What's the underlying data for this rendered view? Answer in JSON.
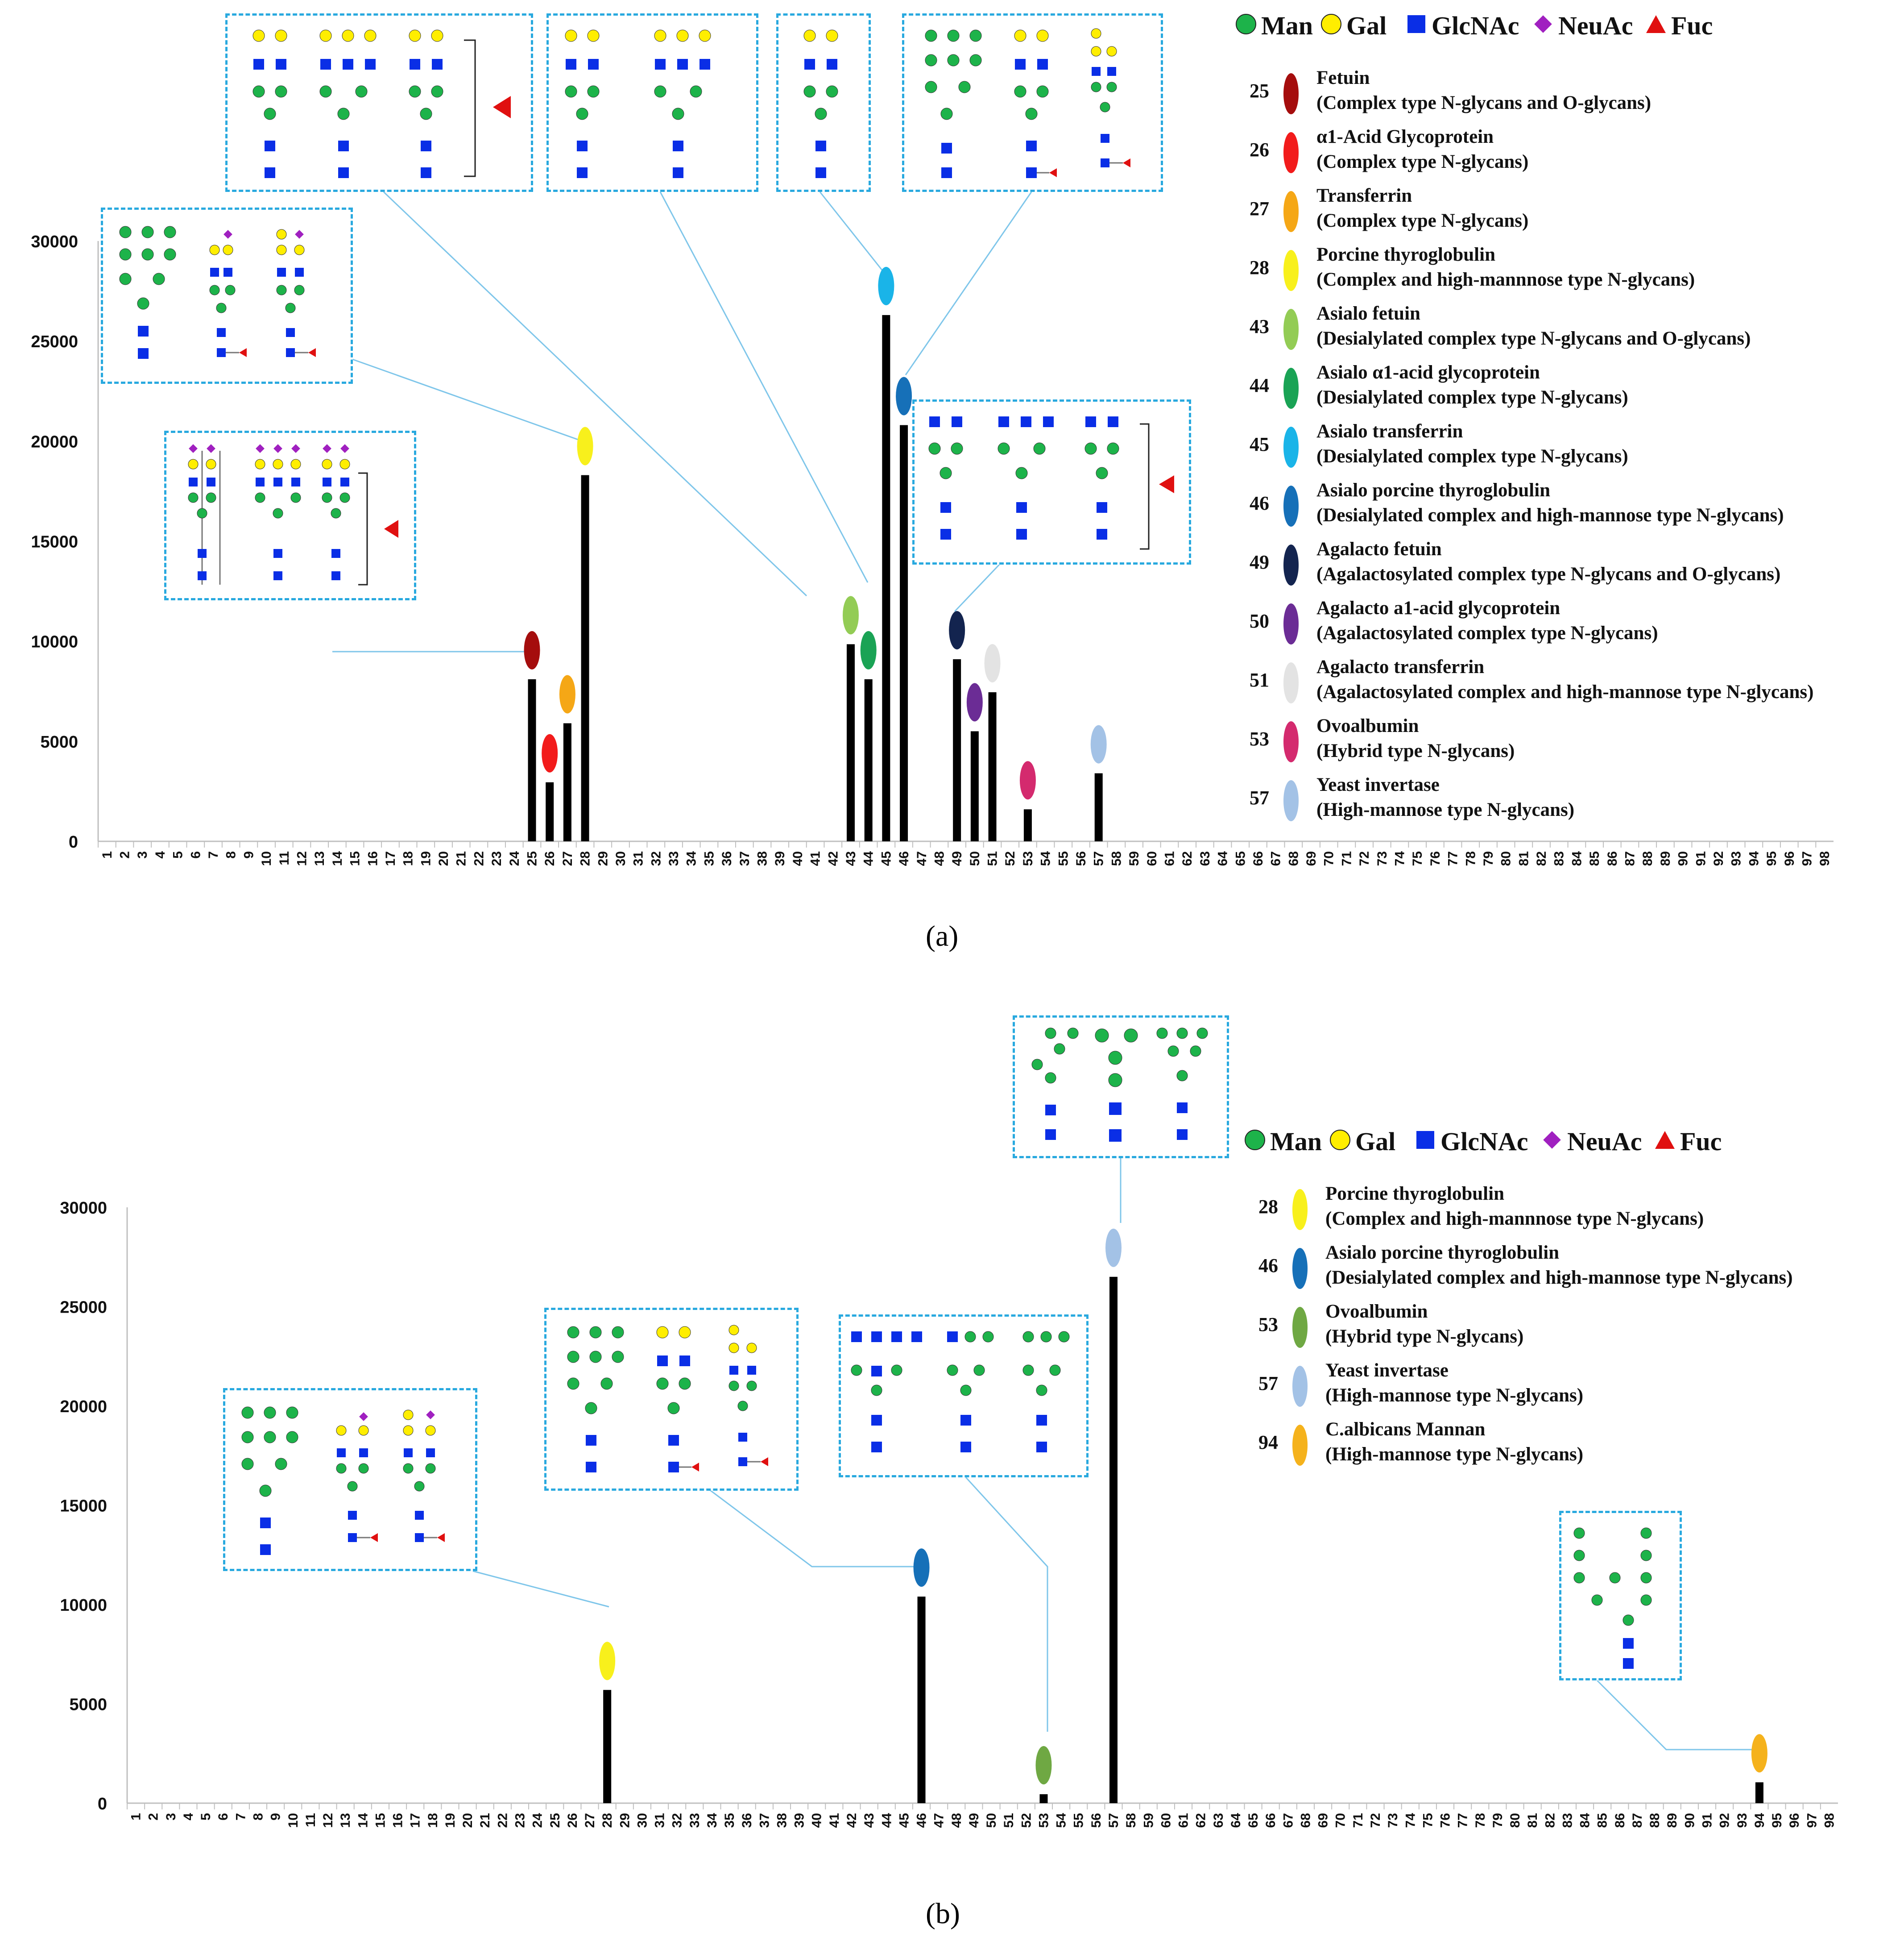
{
  "panels": [
    {
      "label": "(a)",
      "legend_key": [
        {
          "symbol": "circle",
          "color": "#1db34a",
          "label": "Man"
        },
        {
          "symbol": "circle",
          "color": "#ffee00",
          "label": "Gal"
        },
        {
          "symbol": "square",
          "color": "#0a2ee6",
          "label": "GlcNAc"
        },
        {
          "symbol": "diamond",
          "color": "#a020c0",
          "label": "NeuAc"
        },
        {
          "symbol": "triangle",
          "color": "#e01010",
          "label": "Fuc"
        }
      ],
      "legend": [
        {
          "num": "25",
          "color": "#a50d0d",
          "name": "Fetuin",
          "desc": "(Complex type N-glycans and O-glycans)"
        },
        {
          "num": "26",
          "color": "#f21b1b",
          "name": "α1-Acid Glycoprotein",
          "desc": "(Complex type N-glycans)"
        },
        {
          "num": "27",
          "color": "#f5a716",
          "name": "Transferrin",
          "desc": "(Complex type N-glycans)"
        },
        {
          "num": "28",
          "color": "#f8f01c",
          "name": "Porcine thyroglobulin",
          "desc": "(Complex and high-mannnose type N-glycans)"
        },
        {
          "num": "43",
          "color": "#93cc55",
          "name": "Asialo fetuin",
          "desc": "(Desialylated complex type N-glycans and O-glycans)"
        },
        {
          "num": "44",
          "color": "#1aa355",
          "name": "Asialo α1-acid glycoprotein",
          "desc": "(Desialylated complex type N-glycans)"
        },
        {
          "num": "45",
          "color": "#1ab4e8",
          "name": "Asialo transferrin",
          "desc": "(Desialylated complex type N-glycans)"
        },
        {
          "num": "46",
          "color": "#1670b8",
          "name": "Asialo porcine thyroglobulin",
          "desc": "(Desialylated complex and high-mannose type N-glycans)"
        },
        {
          "num": "49",
          "color": "#13244f",
          "name": "Agalacto fetuin",
          "desc": "(Agalactosylated complex type N-glycans and O-glycans)"
        },
        {
          "num": "50",
          "color": "#6b2c95",
          "name": "Agalacto a1-acid glycoprotein",
          "desc": "(Agalactosylated complex type N-glycans)"
        },
        {
          "num": "51",
          "color": "#e3e3e3",
          "name": "Agalacto transferrin",
          "desc": "(Agalactosylated complex and high-mannose type N-glycans)"
        },
        {
          "num": "53",
          "color": "#d42a6e",
          "name": "Ovoalbumin",
          "desc": "(Hybrid type N-glycans)"
        },
        {
          "num": "57",
          "color": "#a3c2e6",
          "name": "Yeast invertase",
          "desc": "(High-mannose type N-glycans)"
        }
      ],
      "chart_data": {
        "type": "bar",
        "xlabel": "",
        "ylabel": "",
        "ylim": [
          0,
          30000
        ],
        "yticks": [
          0,
          5000,
          10000,
          15000,
          20000,
          25000,
          30000
        ],
        "categories": [
          "1",
          "2",
          "3",
          "4",
          "5",
          "6",
          "7",
          "8",
          "9",
          "10",
          "11",
          "12",
          "13",
          "14",
          "15",
          "16",
          "17",
          "18",
          "19",
          "20",
          "21",
          "22",
          "23",
          "24",
          "25",
          "26",
          "27",
          "28",
          "29",
          "30",
          "31",
          "32",
          "33",
          "34",
          "35",
          "36",
          "37",
          "38",
          "39",
          "40",
          "41",
          "42",
          "43",
          "44",
          "45",
          "46",
          "47",
          "48",
          "49",
          "50",
          "51",
          "52",
          "53",
          "54",
          "55",
          "56",
          "57",
          "58",
          "59",
          "60",
          "61",
          "62",
          "63",
          "64",
          "65",
          "66",
          "67",
          "68",
          "69",
          "70",
          "71",
          "72",
          "73",
          "74",
          "75",
          "76",
          "77",
          "78",
          "79",
          "80",
          "81",
          "82",
          "83",
          "84",
          "85",
          "86",
          "87",
          "88",
          "89",
          "90",
          "91",
          "92",
          "93",
          "94",
          "95",
          "96",
          "97",
          "98"
        ],
        "bars": [
          {
            "x": 25,
            "value": 8100,
            "color": "#a50d0d"
          },
          {
            "x": 26,
            "value": 2950,
            "color": "#f21b1b"
          },
          {
            "x": 27,
            "value": 5900,
            "color": "#f5a716"
          },
          {
            "x": 28,
            "value": 18300,
            "color": "#f8f01c"
          },
          {
            "x": 43,
            "value": 9850,
            "color": "#93cc55"
          },
          {
            "x": 44,
            "value": 8100,
            "color": "#1aa355"
          },
          {
            "x": 45,
            "value": 26300,
            "color": "#1ab4e8"
          },
          {
            "x": 46,
            "value": 20800,
            "color": "#1670b8"
          },
          {
            "x": 49,
            "value": 9100,
            "color": "#13244f"
          },
          {
            "x": 50,
            "value": 5500,
            "color": "#6b2c95"
          },
          {
            "x": 51,
            "value": 7450,
            "color": "#e3e3e3"
          },
          {
            "x": 53,
            "value": 1600,
            "color": "#d42a6e"
          },
          {
            "x": 57,
            "value": 3400,
            "color": "#a3c2e6"
          }
        ]
      }
    },
    {
      "label": "(b)",
      "legend_key": [
        {
          "symbol": "circle",
          "color": "#1db34a",
          "label": "Man"
        },
        {
          "symbol": "circle",
          "color": "#ffee00",
          "label": "Gal"
        },
        {
          "symbol": "square",
          "color": "#0a2ee6",
          "label": "GlcNAc"
        },
        {
          "symbol": "diamond",
          "color": "#a020c0",
          "label": "NeuAc"
        },
        {
          "symbol": "triangle",
          "color": "#e01010",
          "label": "Fuc"
        }
      ],
      "legend": [
        {
          "num": "28",
          "color": "#f8f01c",
          "name": "Porcine thyroglobulin",
          "desc": "(Complex and high-mannnose type N-glycans)"
        },
        {
          "num": "46",
          "color": "#1670b8",
          "name": "Asialo porcine thyroglobulin",
          "desc": "(Desialylated complex and high-mannose type N-glycans)"
        },
        {
          "num": "53",
          "color": "#6fa843",
          "name": "Ovoalbumin",
          "desc": "(Hybrid type N-glycans)"
        },
        {
          "num": "57",
          "color": "#a3c2e6",
          "name": "Yeast invertase",
          "desc": "(High-mannose type N-glycans)"
        },
        {
          "num": "94",
          "color": "#f5b21c",
          "name": "C.albicans Mannan",
          "desc": "(High-mannose type N-glycans)"
        }
      ],
      "chart_data": {
        "type": "bar",
        "xlabel": "",
        "ylabel": "",
        "ylim": [
          0,
          30000
        ],
        "yticks": [
          0,
          5000,
          10000,
          15000,
          20000,
          25000,
          30000
        ],
        "categories": [
          "1",
          "2",
          "3",
          "4",
          "5",
          "6",
          "7",
          "8",
          "9",
          "10",
          "11",
          "12",
          "13",
          "14",
          "15",
          "16",
          "17",
          "18",
          "19",
          "20",
          "21",
          "22",
          "23",
          "24",
          "25",
          "26",
          "27",
          "28",
          "29",
          "30",
          "31",
          "32",
          "33",
          "34",
          "35",
          "36",
          "37",
          "38",
          "39",
          "40",
          "41",
          "42",
          "43",
          "44",
          "45",
          "46",
          "47",
          "48",
          "49",
          "50",
          "51",
          "52",
          "53",
          "54",
          "55",
          "56",
          "57",
          "58",
          "59",
          "60",
          "61",
          "62",
          "63",
          "64",
          "65",
          "66",
          "67",
          "68",
          "69",
          "70",
          "71",
          "72",
          "73",
          "74",
          "75",
          "76",
          "77",
          "78",
          "79",
          "80",
          "81",
          "82",
          "83",
          "84",
          "85",
          "86",
          "87",
          "88",
          "89",
          "90",
          "91",
          "92",
          "93",
          "94",
          "95",
          "96",
          "97",
          "98"
        ],
        "bars": [
          {
            "x": 28,
            "value": 5700,
            "color": "#f8f01c"
          },
          {
            "x": 46,
            "value": 10400,
            "color": "#1670b8"
          },
          {
            "x": 53,
            "value": 450,
            "color": "#6fa843"
          },
          {
            "x": 57,
            "value": 26500,
            "color": "#a3c2e6"
          },
          {
            "x": 94,
            "value": 1050,
            "color": "#f5b21c"
          }
        ]
      }
    }
  ]
}
